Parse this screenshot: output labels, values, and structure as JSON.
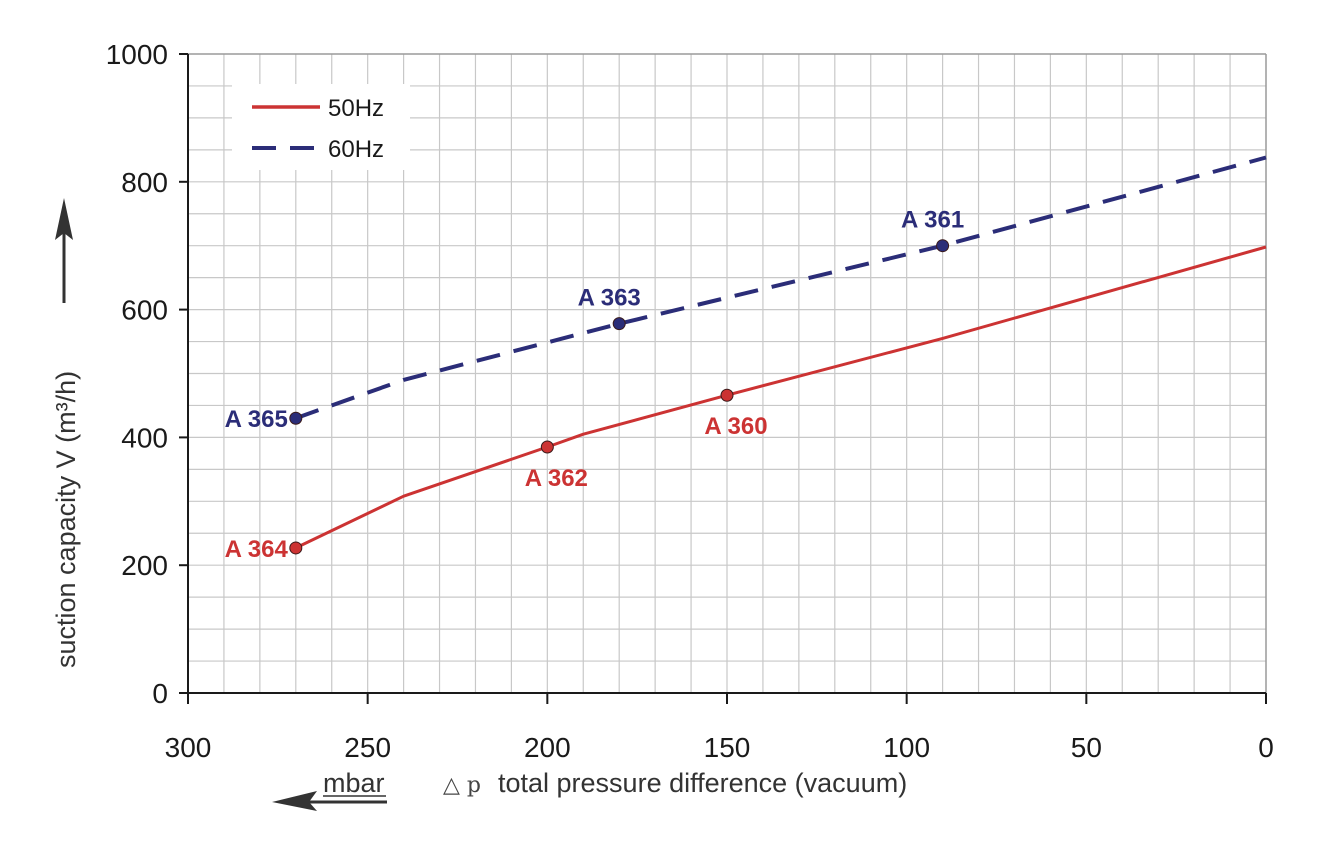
{
  "chart_data": {
    "type": "line",
    "title": "",
    "xlabel": "total pressure difference (vacuum)",
    "xlabel_symbol": "△ p",
    "x_unit": "mbar",
    "ylabel": "suction capacity V (m³/h)",
    "xlim": [
      300,
      0
    ],
    "ylim": [
      0,
      1000
    ],
    "x_reversed": true,
    "x_ticks": [
      300,
      250,
      200,
      150,
      100,
      50,
      0
    ],
    "y_ticks": [
      0,
      200,
      400,
      600,
      800,
      1000
    ],
    "x_minor_step": 10,
    "y_minor_step": 50,
    "grid": true,
    "legend_position": "top-left",
    "series": [
      {
        "name": "50Hz",
        "color": "#cc3333",
        "style": "solid",
        "x": [
          270,
          240,
          200,
          190,
          150,
          90,
          0
        ],
        "y": [
          227,
          308,
          385,
          405,
          466,
          555,
          698
        ]
      },
      {
        "name": "60Hz",
        "color": "#2b2d78",
        "style": "dashed",
        "x": [
          270,
          240,
          180,
          90,
          0
        ],
        "y": [
          430,
          490,
          578,
          700,
          838
        ]
      }
    ],
    "annotations": [
      {
        "text": "A 365",
        "x": 270,
        "y": 430,
        "series": "60Hz",
        "anchor": "left"
      },
      {
        "text": "A 363",
        "x": 180,
        "y": 578,
        "series": "60Hz",
        "anchor": "above"
      },
      {
        "text": "A 361",
        "x": 90,
        "y": 700,
        "series": "60Hz",
        "anchor": "above"
      },
      {
        "text": "A 364",
        "x": 270,
        "y": 227,
        "series": "50Hz",
        "anchor": "left"
      },
      {
        "text": "A 362",
        "x": 200,
        "y": 385,
        "series": "50Hz",
        "anchor": "below"
      },
      {
        "text": "A 360",
        "x": 150,
        "y": 466,
        "series": "50Hz",
        "anchor": "below"
      }
    ]
  }
}
